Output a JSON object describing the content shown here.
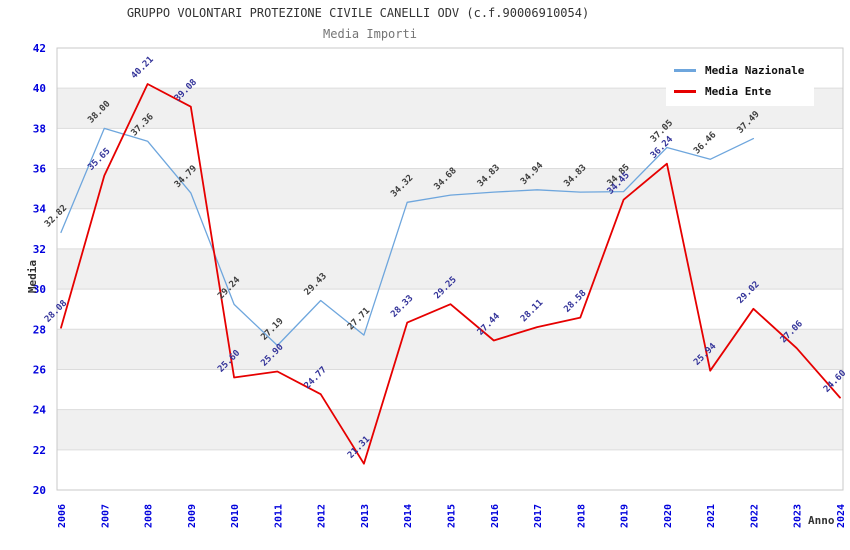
{
  "header": {
    "title": "GRUPPO VOLONTARI PROTEZIONE CIVILE CANELLI ODV (c.f.90006910054)",
    "subtitle": "Media Importi"
  },
  "legend": {
    "position": "top-right",
    "items": [
      {
        "label": "Media Nazionale",
        "color": "#6ea6dd"
      },
      {
        "label": "Media Ente",
        "color": "#e60000"
      }
    ]
  },
  "axes": {
    "ylabel": "Media",
    "xlabel": "Anno",
    "tick_color": "#0000dd"
  },
  "chart_data": {
    "type": "line",
    "title": "GRUPPO VOLONTARI PROTEZIONE CIVILE CANELLI ODV (c.f.90006910054)",
    "subtitle": "Media Importi",
    "xlabel": "Anno",
    "ylabel": "Media",
    "x": [
      2006,
      2007,
      2008,
      2009,
      2010,
      2011,
      2012,
      2013,
      2014,
      2015,
      2016,
      2017,
      2018,
      2019,
      2020,
      2021,
      2022,
      2023,
      2024
    ],
    "series": [
      {
        "name": "Media Nazionale",
        "color": "#6ea6dd",
        "label_color": "#3d3d3d",
        "stroke_width": 1.3,
        "values": [
          32.82,
          38.0,
          37.36,
          34.79,
          29.24,
          27.19,
          29.43,
          27.71,
          34.32,
          34.68,
          34.83,
          34.94,
          34.83,
          34.85,
          37.05,
          36.46,
          37.49,
          null,
          null
        ]
      },
      {
        "name": "Media Ente",
        "color": "#e60000",
        "label_color": "#333399",
        "stroke_width": 1.8,
        "values": [
          28.08,
          35.65,
          40.21,
          39.08,
          25.6,
          25.9,
          24.77,
          21.31,
          28.33,
          29.25,
          27.44,
          28.11,
          28.58,
          34.45,
          36.24,
          25.94,
          29.02,
          27.06,
          24.6
        ]
      }
    ],
    "ylim": [
      20,
      42
    ],
    "ytick_step": 2,
    "value_decimals": 2,
    "grid": "horizontal-bands",
    "band_color": "#f0f0f0",
    "gridline_color": "#dcdcdc",
    "border_color": "#c9c9c9",
    "legend_position": "top-right"
  }
}
